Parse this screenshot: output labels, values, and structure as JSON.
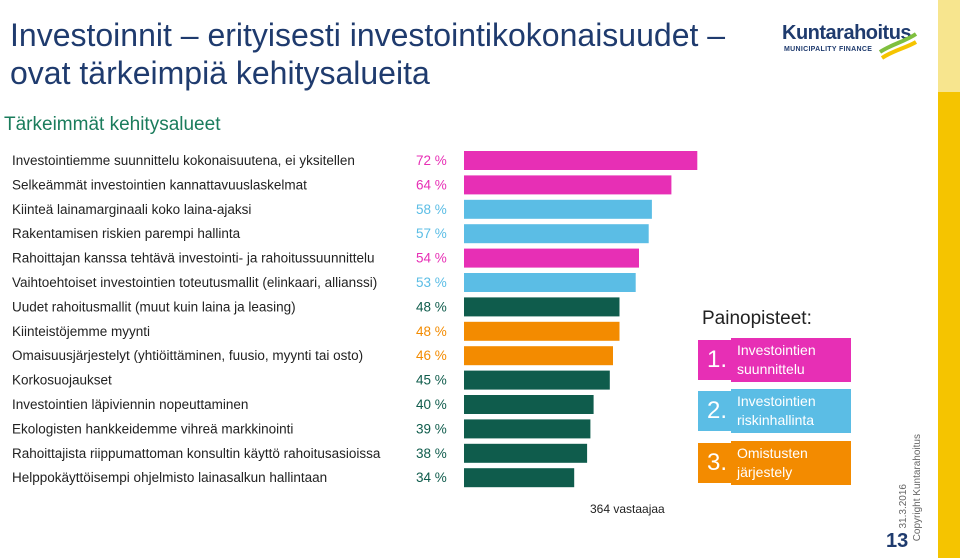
{
  "header": {
    "title_line1": "Investoinnit – erityisesti investointikokonaisuudet –",
    "title_line2": "ovat tärkeimpiä kehitysalueita",
    "logo_name": "Kuntarahoitus",
    "logo_sub": "MUNICIPALITY FINANCE"
  },
  "subtitle": "Tärkeimmät kehitysalueet",
  "respondents": "364 vastaajaa",
  "focus": {
    "title": "Painopisteet:",
    "items": [
      {
        "num": "1.",
        "text": "Investointien suunnittelu",
        "color": "#e72fb5"
      },
      {
        "num": "2.",
        "text": "Investointien riskinhallinta",
        "color": "#5bbde5"
      },
      {
        "num": "3.",
        "text": "Omistusten järjestely",
        "color": "#f38b00"
      }
    ]
  },
  "footer": {
    "copyright": "Copyright Kuntarahoitus",
    "date": "31.3.2016",
    "page": "13"
  },
  "colors": {
    "pink": "#e72fb5",
    "blue": "#5bbde5",
    "green": "#0f5c4c",
    "orange": "#f38b00",
    "black": "#000000"
  },
  "chart_data": {
    "type": "bar",
    "orientation": "horizontal",
    "xlim": [
      0,
      100
    ],
    "categories": [
      "Investointiemme suunnittelu kokonaisuutena, ei yksitellen",
      "Selkeämmät investointien kannattavuuslaskelmat",
      "Kiinteä lainamarginaali koko laina-ajaksi",
      "Rakentamisen riskien parempi hallinta",
      "Rahoittajan kanssa tehtävä investointi- ja rahoitussuunnittelu",
      "Vaihtoehtoiset investointien toteutusmallit (elinkaari, allianssi)",
      "Uudet rahoitusmallit (muut kuin laina ja leasing)",
      "Kiinteistöjemme myynti",
      "Omaisuusjärjestelyt (yhtiöittäminen, fuusio, myynti tai osto)",
      "Korkosuojaukset",
      "Investointien läpiviennin nopeuttaminen",
      "Ekologisten hankkeidemme vihreä markkinointi",
      "Rahoittajista riippumattoman konsultin käyttö rahoitusasioissa",
      "Helppokäyttöisempi ohjelmisto lainasalkun hallintaan"
    ],
    "values": [
      72,
      64,
      58,
      57,
      54,
      53,
      48,
      48,
      46,
      45,
      40,
      39,
      38,
      34
    ],
    "value_labels": [
      "72 %",
      "64 %",
      "58 %",
      "57 %",
      "54 %",
      "53 %",
      "48 %",
      "48 %",
      "46 %",
      "45 %",
      "40 %",
      "39 %",
      "38 %",
      "34 %"
    ],
    "bar_colors": [
      "#e72fb5",
      "#e72fb5",
      "#5bbde5",
      "#5bbde5",
      "#e72fb5",
      "#5bbde5",
      "#0f5c4c",
      "#f38b00",
      "#f38b00",
      "#0f5c4c",
      "#0f5c4c",
      "#0f5c4c",
      "#0f5c4c",
      "#0f5c4c"
    ],
    "label_colors": [
      "#e72fb5",
      "#e72fb5",
      "#5bbde5",
      "#5bbde5",
      "#e72fb5",
      "#5bbde5",
      "#0f5c4c",
      "#f38b00",
      "#f38b00",
      "#0f5c4c",
      "#0f5c4c",
      "#0f5c4c",
      "#0f5c4c",
      "#0f5c4c"
    ]
  }
}
